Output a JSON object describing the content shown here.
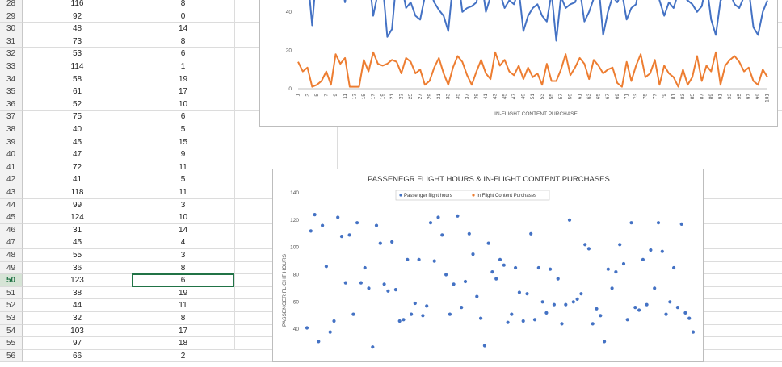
{
  "spreadsheet": {
    "rows": [
      {
        "n": "28",
        "a": "116",
        "b": "8"
      },
      {
        "n": "29",
        "a": "92",
        "b": "0"
      },
      {
        "n": "30",
        "a": "48",
        "b": "14"
      },
      {
        "n": "31",
        "a": "73",
        "b": "8"
      },
      {
        "n": "32",
        "a": "53",
        "b": "6"
      },
      {
        "n": "33",
        "a": "114",
        "b": "1"
      },
      {
        "n": "34",
        "a": "58",
        "b": "19"
      },
      {
        "n": "35",
        "a": "61",
        "b": "17"
      },
      {
        "n": "36",
        "a": "52",
        "b": "10"
      },
      {
        "n": "37",
        "a": "75",
        "b": "6"
      },
      {
        "n": "38",
        "a": "40",
        "b": "5"
      },
      {
        "n": "39",
        "a": "45",
        "b": "15"
      },
      {
        "n": "40",
        "a": "47",
        "b": "9"
      },
      {
        "n": "41",
        "a": "72",
        "b": "11"
      },
      {
        "n": "42",
        "a": "41",
        "b": "5"
      },
      {
        "n": "43",
        "a": "118",
        "b": "11"
      },
      {
        "n": "44",
        "a": "99",
        "b": "3"
      },
      {
        "n": "45",
        "a": "124",
        "b": "10"
      },
      {
        "n": "46",
        "a": "31",
        "b": "14"
      },
      {
        "n": "47",
        "a": "45",
        "b": "4"
      },
      {
        "n": "48",
        "a": "55",
        "b": "3"
      },
      {
        "n": "49",
        "a": "36",
        "b": "8"
      },
      {
        "n": "50",
        "a": "123",
        "b": "6"
      },
      {
        "n": "51",
        "a": "38",
        "b": "19"
      },
      {
        "n": "52",
        "a": "44",
        "b": "11"
      },
      {
        "n": "53",
        "a": "32",
        "b": "8"
      },
      {
        "n": "54",
        "a": "103",
        "b": "17"
      },
      {
        "n": "55",
        "a": "97",
        "b": "18"
      },
      {
        "n": "56",
        "a": "66",
        "b": "2"
      }
    ],
    "active_row": "50",
    "colors": {
      "grid": "#dcdcdc",
      "header_bg": "#f2f2f2",
      "active": "#217346"
    }
  },
  "chart_data": [
    {
      "type": "line",
      "title": "",
      "xlabel": "IN-FLIGHT CONTENT PURCHASE",
      "ylabel": "",
      "ylim": [
        0,
        50
      ],
      "yticks": [
        "0",
        "20",
        "40"
      ],
      "x_ticks": [
        "1",
        "3",
        "5",
        "7",
        "9",
        "11",
        "13",
        "15",
        "17",
        "19",
        "21",
        "23",
        "25",
        "27",
        "29",
        "31",
        "33",
        "35",
        "37",
        "39",
        "41",
        "43",
        "45",
        "47",
        "49",
        "51",
        "53",
        "55",
        "57",
        "59",
        "61",
        "63",
        "65",
        "67",
        "69",
        "71",
        "73",
        "75",
        "77",
        "79",
        "81",
        "83",
        "85",
        "87",
        "89",
        "91",
        "93",
        "95",
        "97",
        "99",
        "101"
      ],
      "series": [
        {
          "name": "",
          "color": "#4472c4",
          "values": [
            48,
            55,
            60,
            33,
            62,
            58,
            50,
            55,
            60,
            58,
            45,
            60,
            52,
            48,
            55,
            60,
            38,
            50,
            55,
            27,
            31,
            58,
            55,
            42,
            45,
            38,
            36,
            48,
            52,
            45,
            41,
            38,
            30,
            55,
            60,
            40,
            42,
            43,
            45,
            58,
            40,
            48,
            55,
            50,
            42,
            46,
            44,
            52,
            30,
            38,
            42,
            44,
            38,
            35,
            50,
            25,
            48,
            42,
            44,
            45,
            52,
            35,
            40,
            47,
            55,
            28,
            40,
            48,
            45,
            50,
            36,
            42,
            44,
            58,
            50,
            48,
            55,
            46,
            38,
            45,
            42,
            50,
            48,
            46,
            44,
            40,
            43,
            55,
            36,
            28,
            46,
            48,
            50,
            44,
            42,
            48,
            52,
            32,
            28,
            40,
            46
          ]
        },
        {
          "name": "",
          "color": "#ed7d31",
          "values": [
            14,
            9,
            11,
            1,
            2,
            4,
            9,
            2,
            18,
            13,
            16,
            1,
            1,
            1,
            15,
            9,
            19,
            13,
            12,
            13,
            15,
            14,
            8,
            16,
            14,
            8,
            10,
            2,
            4,
            11,
            16,
            8,
            2,
            11,
            17,
            14,
            7,
            2,
            9,
            15,
            8,
            5,
            19,
            12,
            15,
            9,
            7,
            12,
            5,
            11,
            6,
            8,
            2,
            13,
            4,
            4,
            10,
            18,
            7,
            11,
            16,
            13,
            5,
            15,
            12,
            8,
            10,
            11,
            3,
            1,
            14,
            4,
            12,
            18,
            6,
            8,
            15,
            2,
            12,
            8,
            6,
            1,
            10,
            2,
            6,
            17,
            4,
            12,
            9,
            19,
            2,
            12,
            15,
            17,
            14,
            9,
            11,
            4,
            2,
            10,
            6
          ]
        }
      ]
    },
    {
      "type": "scatter",
      "title": "PASSENEGR FLIGHT HOURS & IN-FLIGHT CONTENT PURCHASES",
      "xlabel": "",
      "ylabel": "PASSENGER FLIGHT HOURS",
      "ylim": [
        20,
        140
      ],
      "yticks": [
        "40",
        "60",
        "80",
        "100",
        "120",
        "140"
      ],
      "legend": [
        "Passenger flight hours",
        "In Flight Content Purchases"
      ],
      "legend_colors": [
        "#4472c4",
        "#ed7d31"
      ],
      "x": [
        1,
        2,
        3,
        4,
        5,
        6,
        7,
        8,
        9,
        10,
        11,
        12,
        13,
        14,
        15,
        16,
        17,
        18,
        19,
        20,
        21,
        22,
        23,
        24,
        25,
        26,
        27,
        28,
        29,
        30,
        31,
        32,
        33,
        34,
        35,
        36,
        37,
        38,
        39,
        40,
        41,
        42,
        43,
        44,
        45,
        46,
        47,
        48,
        49,
        50,
        51,
        52,
        53,
        54,
        55,
        56,
        57,
        58,
        59,
        60,
        61,
        62,
        63,
        64,
        65,
        66,
        67,
        68,
        69,
        70,
        71,
        72,
        73,
        74,
        75,
        76,
        77,
        78,
        79,
        80,
        81,
        82,
        83,
        84,
        85,
        86,
        87,
        88,
        89,
        90,
        91,
        92,
        93,
        94,
        95,
        96,
        97,
        98,
        99,
        100,
        101
      ],
      "values": [
        41,
        112,
        124,
        31,
        116,
        86,
        38,
        46,
        122,
        108,
        74,
        109,
        51,
        118,
        74,
        85,
        70,
        27,
        116,
        103,
        73,
        68,
        104,
        69,
        46,
        47,
        91,
        51,
        59,
        91,
        50,
        57,
        118,
        90,
        122,
        109,
        80,
        51,
        73,
        123,
        56,
        75,
        110,
        95,
        64,
        48,
        28,
        103,
        82,
        77,
        91,
        87,
        45,
        51,
        85,
        67,
        46,
        66,
        110,
        47,
        85,
        60,
        52,
        84,
        58,
        77,
        44,
        58,
        120,
        60,
        62,
        66,
        102,
        99,
        44,
        55,
        50,
        31,
        84,
        70,
        82,
        102,
        88,
        47,
        118,
        56,
        54,
        91,
        58,
        98,
        70,
        118,
        97,
        51,
        60,
        85,
        56,
        117,
        52,
        48,
        38
      ]
    }
  ]
}
